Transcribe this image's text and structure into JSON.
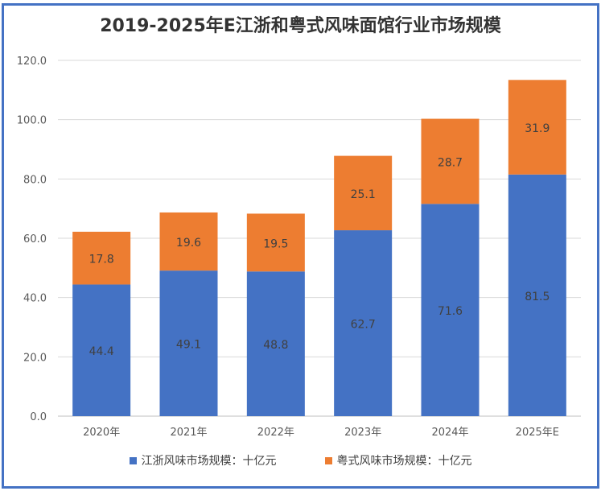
{
  "chart_data": {
    "type": "bar",
    "stacked": true,
    "title": "2019-2025年E江浙和粤式风味面馆行业市场规模",
    "categories": [
      "2020年",
      "2021年",
      "2022年",
      "2023年",
      "2024年",
      "2025年E"
    ],
    "series": [
      {
        "name": "江浙风味市场规模：十亿元",
        "color": "#4472c4",
        "values": [
          44.4,
          49.1,
          48.8,
          62.7,
          71.6,
          81.5
        ]
      },
      {
        "name": "粤式风味市场规模：十亿元",
        "color": "#ed7d31",
        "values": [
          17.8,
          19.6,
          19.5,
          25.1,
          28.7,
          31.9
        ]
      }
    ],
    "ylim": [
      0,
      120
    ],
    "yticks": [
      "0.0",
      "20.0",
      "40.0",
      "60.0",
      "80.0",
      "100.0",
      "120.0"
    ],
    "grid": true,
    "legend": "bottom",
    "xlabel": "",
    "ylabel": ""
  }
}
